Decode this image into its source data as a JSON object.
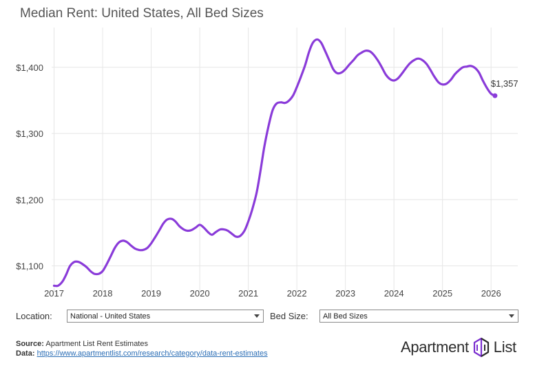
{
  "page": {
    "title": "Median Rent: United States, All Bed Sizes"
  },
  "controls": {
    "location_label": "Location:",
    "location_value": "National - United States",
    "bed_size_label": "Bed Size:",
    "bed_size_value": "All Bed Sizes"
  },
  "footer": {
    "source_label": "Source:",
    "source_text": "Apartment List Rent Estimates",
    "data_label": "Data:",
    "data_link": "https://www.apartmentlist.com/research/category/data-rent-estimates"
  },
  "brand": {
    "name_left": "Apartment",
    "name_right": "List",
    "logo_icon": "building-outline-icon"
  },
  "colors": {
    "line": "#8a3bd9",
    "grid": "#e6e6e6",
    "title": "#555555"
  },
  "chart_data": {
    "type": "line",
    "title": "Median Rent: United States, All Bed Sizes",
    "xlabel": "",
    "ylabel": "",
    "xlim": [
      2016.95,
      2026.55
    ],
    "ylim": [
      1060,
      1460
    ],
    "x_ticks": [
      2017,
      2018,
      2019,
      2020,
      2021,
      2022,
      2023,
      2024,
      2025,
      2026
    ],
    "y_ticks": [
      1100,
      1200,
      1300,
      1400
    ],
    "y_tick_labels": [
      "$1,100",
      "$1,200",
      "$1,300",
      "$1,400"
    ],
    "grid": true,
    "end_label": "$1,357",
    "series": [
      {
        "x": [
          2017.0,
          2017.08,
          2017.17,
          2017.25,
          2017.33,
          2017.42,
          2017.5,
          2017.58,
          2017.67,
          2017.75,
          2017.83,
          2017.92,
          2018.0,
          2018.08,
          2018.17,
          2018.25,
          2018.33,
          2018.42,
          2018.5,
          2018.58,
          2018.67,
          2018.75,
          2018.83,
          2018.92,
          2019.0,
          2019.08,
          2019.17,
          2019.25,
          2019.33,
          2019.42,
          2019.5,
          2019.58,
          2019.67,
          2019.75,
          2019.83,
          2019.92,
          2020.0,
          2020.08,
          2020.17,
          2020.25,
          2020.33,
          2020.42,
          2020.5,
          2020.58,
          2020.67,
          2020.75,
          2020.83,
          2020.92,
          2021.0,
          2021.08,
          2021.17,
          2021.25,
          2021.33,
          2021.42,
          2021.5,
          2021.58,
          2021.67,
          2021.75,
          2021.83,
          2021.92,
          2022.0,
          2022.08,
          2022.17,
          2022.25,
          2022.33,
          2022.42,
          2022.5,
          2022.58,
          2022.67,
          2022.75,
          2022.83,
          2022.92,
          2023.0,
          2023.08,
          2023.17,
          2023.25,
          2023.33,
          2023.42,
          2023.5,
          2023.58,
          2023.67,
          2023.75,
          2023.83,
          2023.92,
          2024.0,
          2024.08,
          2024.17,
          2024.25,
          2024.33,
          2024.42,
          2024.5,
          2024.58,
          2024.67,
          2024.75,
          2024.83,
          2024.92,
          2025.0,
          2025.08,
          2025.17,
          2025.25,
          2025.33,
          2025.42,
          2025.5,
          2025.58,
          2025.67,
          2025.75,
          2025.83,
          2025.92,
          2026.0,
          2026.08
        ],
        "y": [
          1070,
          1070,
          1076,
          1087,
          1100,
          1106,
          1106,
          1103,
          1098,
          1092,
          1088,
          1088,
          1092,
          1102,
          1115,
          1127,
          1135,
          1138,
          1136,
          1131,
          1126,
          1124,
          1124,
          1127,
          1134,
          1143,
          1154,
          1164,
          1170,
          1171,
          1167,
          1160,
          1155,
          1153,
          1154,
          1158,
          1162,
          1158,
          1151,
          1147,
          1151,
          1155,
          1155,
          1153,
          1148,
          1144,
          1145,
          1153,
          1167,
          1185,
          1210,
          1243,
          1280,
          1312,
          1335,
          1345,
          1347,
          1346,
          1349,
          1357,
          1370,
          1385,
          1403,
          1423,
          1437,
          1442,
          1437,
          1425,
          1410,
          1397,
          1391,
          1392,
          1397,
          1404,
          1411,
          1418,
          1422,
          1425,
          1424,
          1419,
          1410,
          1400,
          1389,
          1382,
          1380,
          1383,
          1391,
          1399,
          1406,
          1411,
          1413,
          1411,
          1405,
          1396,
          1386,
          1377,
          1374,
          1375,
          1381,
          1389,
          1395,
          1400,
          1401,
          1402,
          1399,
          1392,
          1380,
          1368,
          1360,
          1357
        ]
      }
    ]
  }
}
